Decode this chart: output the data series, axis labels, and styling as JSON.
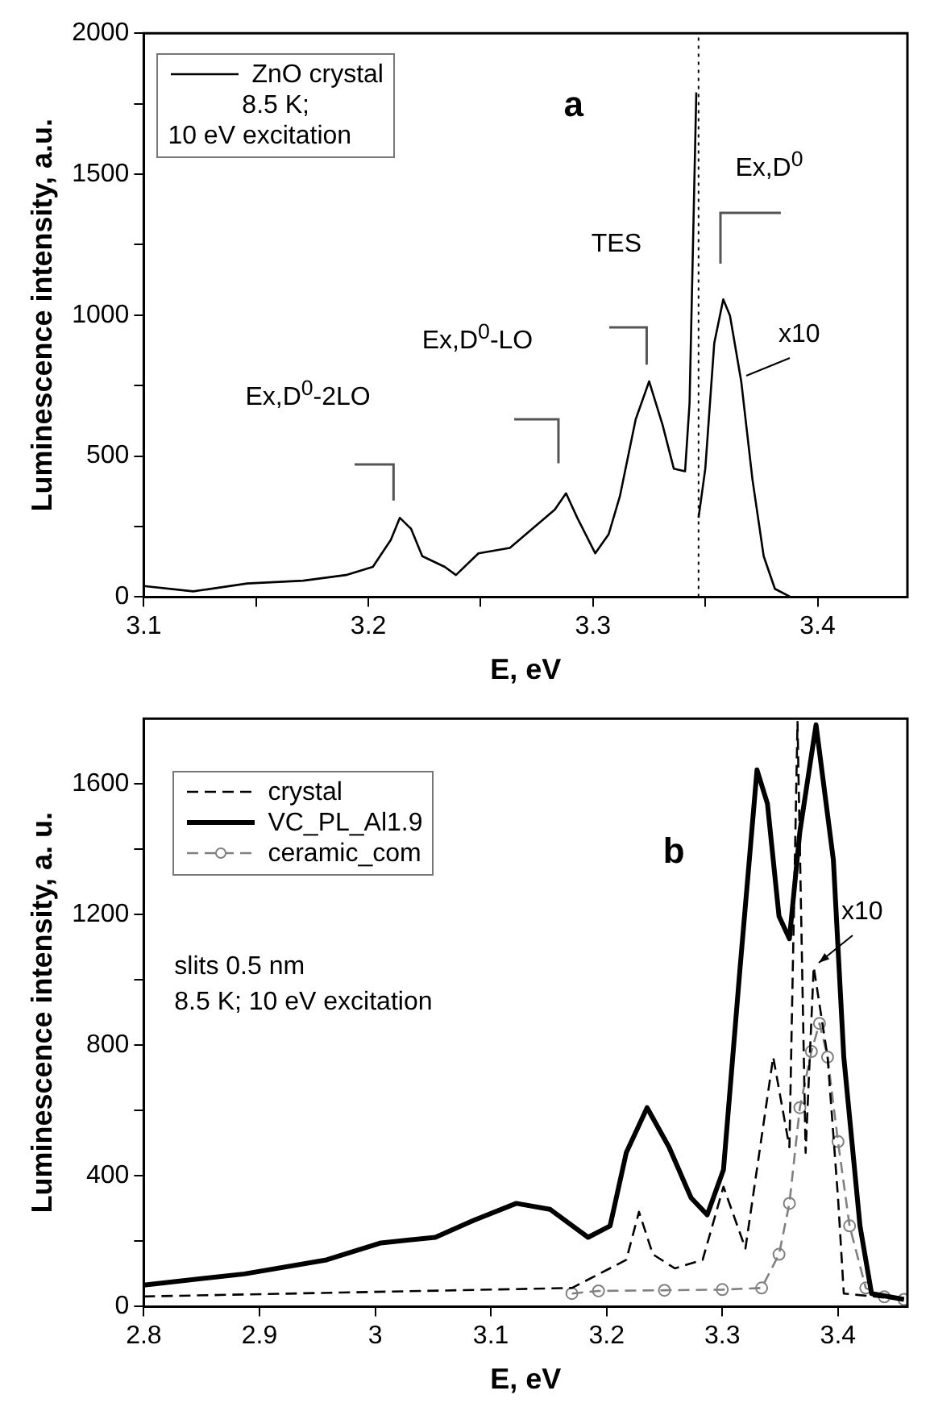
{
  "chart_data": [
    {
      "type": "line",
      "xlabel": "E, eV",
      "ylabel": "Luminescence intensity, a.u.",
      "xlim": [
        3.1,
        3.44
      ],
      "ylim": [
        0,
        2000
      ],
      "xticks": [
        3.1,
        {
          "value": 3.15,
          "label": null
        },
        3.2,
        {
          "value": 3.25,
          "label": null
        },
        3.3,
        {
          "value": 3.35,
          "label": null
        },
        3.4
      ],
      "yticks": [
        0,
        {
          "value": 250,
          "label": null
        },
        500,
        {
          "value": 750,
          "label": null
        },
        1000,
        {
          "value": 1250,
          "label": null
        },
        1500,
        {
          "value": 1750,
          "label": null
        },
        2000
      ],
      "legend": "top left",
      "series": [
        {
          "name": "ZnO crystal",
          "color": "#000000",
          "x": [
            3.1,
            3.122,
            3.146,
            3.171,
            3.19,
            3.202,
            3.21,
            3.214,
            3.219,
            3.224,
            3.234,
            3.239,
            3.249,
            3.263,
            3.273,
            3.283,
            3.288,
            3.293,
            3.301,
            3.307,
            3.312,
            3.319,
            3.325,
            3.331,
            3.336,
            3.341,
            3.343,
            3.346
          ],
          "values": [
            39,
            20,
            48,
            58,
            78,
            107,
            203,
            281,
            242,
            145,
            107,
            78,
            155,
            174,
            242,
            310,
            368,
            281,
            155,
            223,
            358,
            630,
            765,
            610,
            455,
            446,
            688,
            1790
          ]
        },
        {
          "color": "#000000",
          "x": [
            3.347,
            3.35,
            3.354,
            3.358,
            3.361,
            3.366,
            3.371,
            3.376,
            3.381,
            3.388,
            3.437
          ],
          "values": [
            281,
            455,
            901,
            1056,
            998,
            765,
            417,
            145,
            29,
            0,
            0
          ]
        }
      ],
      "ref_lines": [
        {
          "axis": "x",
          "value": 3.347,
          "line_style": "dotted",
          "color": "#000000"
        }
      ],
      "annotations": [
        "8.5 K;",
        "10 eV excitation",
        "a",
        "Ex,D$^{0}$-2LO",
        "Ex,D$^{0}$-LO",
        "TES",
        "Ex,D$^{0}$",
        {
          "text": "x10",
          "x": 3.366,
          "y": 765
        }
      ]
    },
    {
      "type": "line",
      "xlabel": "E, eV",
      "ylabel": "Luminescence intensity, a. u.",
      "xlim": [
        2.8,
        3.46
      ],
      "ylim": [
        0,
        1800
      ],
      "xticks": [
        2.8,
        2.9,
        3.0,
        3.1,
        3.2,
        3.3,
        3.4
      ],
      "yticks": [
        0,
        {
          "value": 200,
          "label": null
        },
        400,
        {
          "value": 600,
          "label": null
        },
        800,
        {
          "value": 1000,
          "label": null
        },
        1200,
        {
          "value": 1400,
          "label": null
        },
        1600
      ],
      "legend": "top left",
      "series": [
        {
          "name": "crystal",
          "color": "#000000",
          "line_style": "dashed",
          "x": [
            2.8,
            3.17,
            3.217,
            3.228,
            3.24,
            3.259,
            3.283,
            3.301,
            3.32,
            3.344,
            3.358,
            3.365,
            3.372,
            3.379,
            3.391,
            3.4,
            3.405,
            3.457
          ],
          "values": [
            31,
            57,
            143,
            290,
            160,
            117,
            143,
            367,
            178,
            764,
            488,
            1790,
            471,
            1040,
            764,
            333,
            40,
            22
          ]
        },
        {
          "name": "VC_PL_Al1.9",
          "color": "#000000",
          "x": [
            2.8,
            2.887,
            2.958,
            3.005,
            3.052,
            3.085,
            3.122,
            3.151,
            3.184,
            3.203,
            3.217,
            3.235,
            3.254,
            3.273,
            3.287,
            3.301,
            3.315,
            3.33,
            3.339,
            3.349,
            3.358,
            3.367,
            3.381,
            3.396,
            3.405,
            3.419,
            3.429,
            3.457
          ],
          "values": [
            66,
            100,
            143,
            195,
            212,
            264,
            316,
            298,
            212,
            247,
            471,
            609,
            488,
            333,
            281,
            419,
            1022,
            1643,
            1540,
            1195,
            1126,
            1453,
            1781,
            1367,
            764,
            247,
            40,
            22
          ]
        },
        {
          "name": "ceramic_com",
          "color": "#808080",
          "line_style": "dashed",
          "marker": "circle",
          "x": [
            3.17,
            3.193,
            3.25,
            3.3,
            3.334,
            3.349,
            3.358,
            3.367,
            3.377,
            3.384,
            3.391,
            3.4,
            3.41,
            3.424,
            3.44,
            3.457
          ],
          "values": [
            40,
            48,
            50,
            52,
            57,
            160,
            316,
            609,
            781,
            867,
            764,
            505,
            247,
            57,
            30,
            22
          ]
        }
      ],
      "annotations": [
        "slits 0.5 nm",
        "8.5 K; 10 eV excitation",
        "b",
        {
          "text": "x10",
          "x": 3.379,
          "y": 1040
        }
      ]
    }
  ]
}
